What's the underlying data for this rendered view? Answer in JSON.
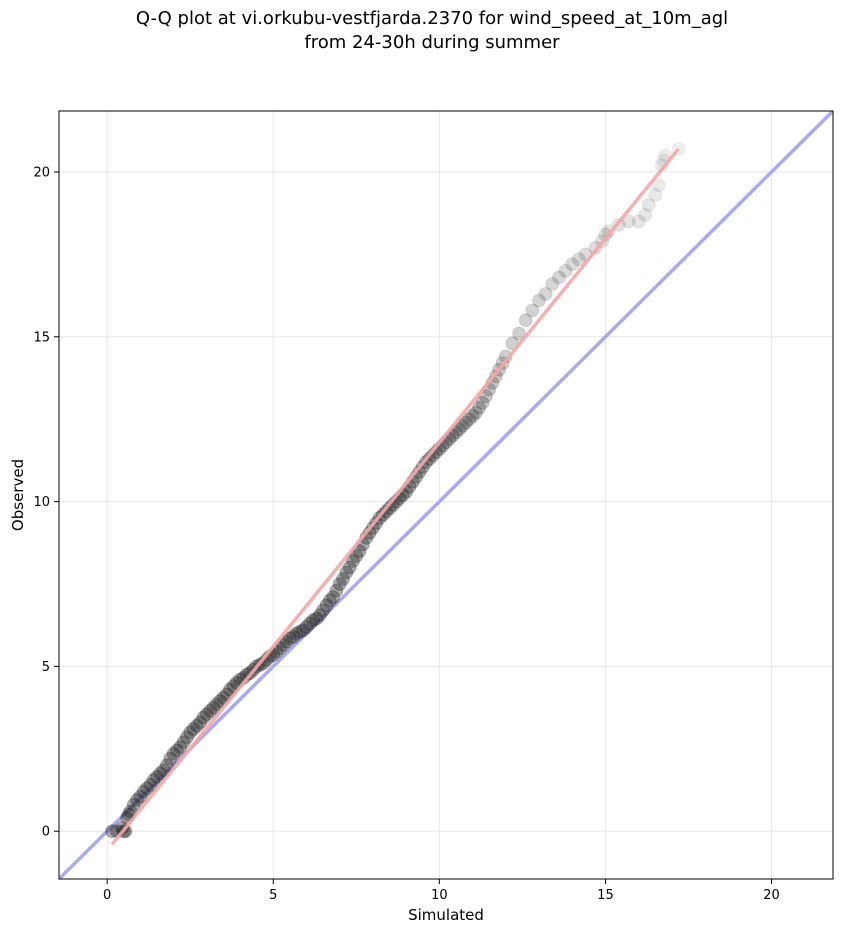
{
  "chart_data": {
    "type": "scatter",
    "title_lines": [
      "Q-Q plot at vi.orkubu-vestfjarda.2370 for wind_speed_at_10m_agl",
      "from 24-30h during summer"
    ],
    "xlabel": "Simulated",
    "ylabel": "Observed",
    "xlim": [
      -1.45,
      21.85
    ],
    "ylim": [
      -1.45,
      21.85
    ],
    "xticks": [
      0,
      5,
      10,
      15,
      20
    ],
    "yticks": [
      0,
      5,
      10,
      15,
      20
    ],
    "grid": true,
    "legend": "none",
    "colors": {
      "points": "#222222",
      "identity_line": "#aaaaee",
      "fit_line": "#f4a6a6",
      "grid": "#e6e6e6",
      "axes": "#000000"
    },
    "series": [
      {
        "type": "line",
        "role": "identity",
        "x": [
          -1.45,
          21.85
        ],
        "y": [
          -1.45,
          21.85
        ]
      },
      {
        "type": "line",
        "role": "fit",
        "x": [
          0.15,
          17.2
        ],
        "y": [
          -0.4,
          20.7
        ]
      },
      {
        "type": "scatter",
        "role": "quantiles",
        "x": [
          0.15,
          0.3,
          0.45,
          0.5,
          0.55,
          0.6,
          0.65,
          0.7,
          0.8,
          0.9,
          1.0,
          1.1,
          1.2,
          1.3,
          1.4,
          1.5,
          1.6,
          1.7,
          1.8,
          1.9,
          2.0,
          2.1,
          2.2,
          2.3,
          2.4,
          2.5,
          2.6,
          2.7,
          2.8,
          2.9,
          3.0,
          3.1,
          3.2,
          3.3,
          3.4,
          3.5,
          3.6,
          3.7,
          3.8,
          3.9,
          4.0,
          4.1,
          4.2,
          4.3,
          4.4,
          4.5,
          4.6,
          4.7,
          4.8,
          4.9,
          5.0,
          5.1,
          5.2,
          5.3,
          5.4,
          5.5,
          5.6,
          5.7,
          5.8,
          5.9,
          6.0,
          6.1,
          6.2,
          6.3,
          6.4,
          6.5,
          6.6,
          6.7,
          6.8,
          6.9,
          7.0,
          7.1,
          7.2,
          7.3,
          7.4,
          7.5,
          7.6,
          7.7,
          7.8,
          7.9,
          8.0,
          8.1,
          8.2,
          8.3,
          8.4,
          8.5,
          8.6,
          8.7,
          8.8,
          8.9,
          9.0,
          9.1,
          9.2,
          9.3,
          9.4,
          9.5,
          9.6,
          9.7,
          9.8,
          9.9,
          10.0,
          10.1,
          10.2,
          10.3,
          10.4,
          10.5,
          10.6,
          10.7,
          10.8,
          10.9,
          11.0,
          11.1,
          11.2,
          11.3,
          11.4,
          11.5,
          11.6,
          11.7,
          11.8,
          11.9,
          12.0,
          12.2,
          12.4,
          12.6,
          12.8,
          13.0,
          13.2,
          13.4,
          13.6,
          13.8,
          14.0,
          14.2,
          14.4,
          14.7,
          14.9,
          15.0,
          15.1,
          15.4,
          15.7,
          16.0,
          16.2,
          16.3,
          16.5,
          16.6,
          16.7,
          16.75,
          16.8,
          17.2
        ],
        "y": [
          0.0,
          0.0,
          0.1,
          0.0,
          0.0,
          0.4,
          0.5,
          0.6,
          0.8,
          0.95,
          1.05,
          1.2,
          1.3,
          1.4,
          1.55,
          1.65,
          1.75,
          1.85,
          2.0,
          2.2,
          2.35,
          2.45,
          2.55,
          2.7,
          2.85,
          3.0,
          3.1,
          3.2,
          3.3,
          3.45,
          3.55,
          3.65,
          3.75,
          3.85,
          3.95,
          4.05,
          4.15,
          4.3,
          4.4,
          4.5,
          4.6,
          4.65,
          4.75,
          4.8,
          4.9,
          5.0,
          5.05,
          5.1,
          5.2,
          5.3,
          5.35,
          5.45,
          5.55,
          5.65,
          5.75,
          5.85,
          5.9,
          6.0,
          6.05,
          6.1,
          6.2,
          6.3,
          6.4,
          6.45,
          6.55,
          6.7,
          6.85,
          7.0,
          7.1,
          7.3,
          7.5,
          7.65,
          7.85,
          8.0,
          8.2,
          8.35,
          8.5,
          8.7,
          8.9,
          9.05,
          9.2,
          9.35,
          9.5,
          9.6,
          9.7,
          9.8,
          9.9,
          10.0,
          10.1,
          10.2,
          10.3,
          10.45,
          10.6,
          10.75,
          10.9,
          11.05,
          11.2,
          11.3,
          11.4,
          11.5,
          11.6,
          11.7,
          11.8,
          11.9,
          12.0,
          12.1,
          12.2,
          12.3,
          12.4,
          12.5,
          12.6,
          12.7,
          12.85,
          13.0,
          13.2,
          13.4,
          13.6,
          13.8,
          14.0,
          14.2,
          14.4,
          14.8,
          15.1,
          15.5,
          15.8,
          16.1,
          16.3,
          16.6,
          16.8,
          17.0,
          17.2,
          17.35,
          17.5,
          17.7,
          17.9,
          18.1,
          18.2,
          18.4,
          18.5,
          18.5,
          18.7,
          19.0,
          19.3,
          19.6,
          20.2,
          20.35,
          20.5,
          20.7
        ]
      }
    ]
  }
}
